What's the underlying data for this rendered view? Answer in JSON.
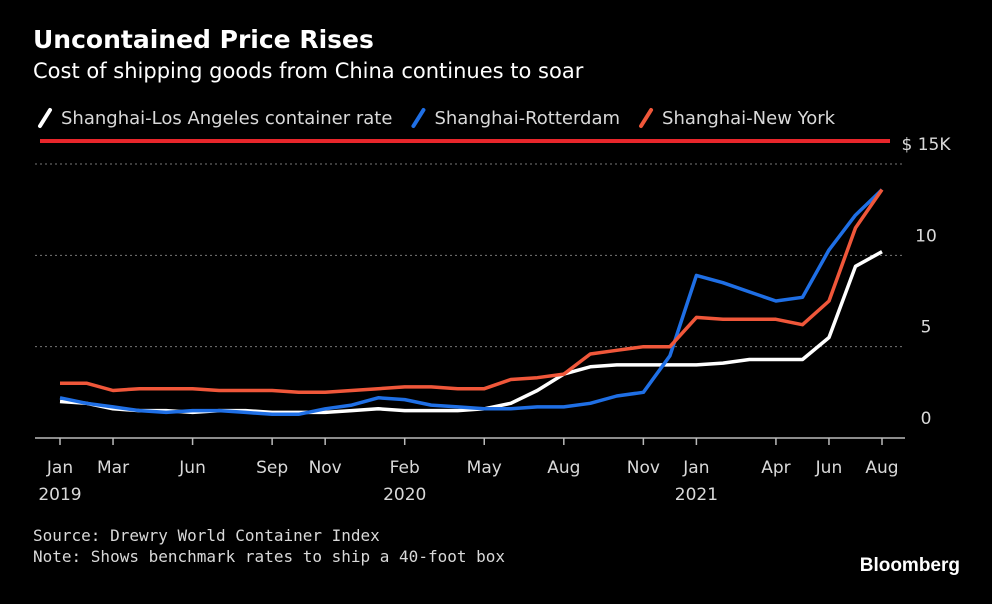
{
  "chart_data": {
    "type": "line",
    "title": "Uncontained Price Rises",
    "subtitle": "Cost of shipping goods from China continues to soar",
    "source": "Source: Drewry World Container Index",
    "note": "Note: Shows benchmark rates to ship a 40-foot box",
    "brand": "Bloomberg",
    "x": [
      "2019-01",
      "2019-02",
      "2019-03",
      "2019-04",
      "2019-05",
      "2019-06",
      "2019-07",
      "2019-08",
      "2019-09",
      "2019-10",
      "2019-11",
      "2019-12",
      "2020-01",
      "2020-02",
      "2020-03",
      "2020-04",
      "2020-05",
      "2020-06",
      "2020-07",
      "2020-08",
      "2020-09",
      "2020-10",
      "2020-11",
      "2020-12",
      "2021-01",
      "2021-02",
      "2021-03",
      "2021-04",
      "2021-05",
      "2021-06",
      "2021-07",
      "2021-08"
    ],
    "xticks": [
      {
        "value": "2019-01",
        "label": "Jan"
      },
      {
        "value": "2019-03",
        "label": "Mar"
      },
      {
        "value": "2019-06",
        "label": "Jun"
      },
      {
        "value": "2019-09",
        "label": "Sep"
      },
      {
        "value": "2019-11",
        "label": "Nov"
      },
      {
        "value": "2020-02",
        "label": "Feb"
      },
      {
        "value": "2020-05",
        "label": "May"
      },
      {
        "value": "2020-08",
        "label": "Aug"
      },
      {
        "value": "2020-11",
        "label": "Nov"
      },
      {
        "value": "2021-01",
        "label": "Jan"
      },
      {
        "value": "2021-04",
        "label": "Apr"
      },
      {
        "value": "2021-06",
        "label": "Jun"
      },
      {
        "value": "2021-08",
        "label": "Aug"
      }
    ],
    "xtick_years": [
      {
        "value": "2019-01",
        "label": "2019"
      },
      {
        "value": "2020-02",
        "label": "2020"
      },
      {
        "value": "2021-01",
        "label": "2021"
      }
    ],
    "ylim": [
      0,
      15
    ],
    "yticks": [
      0,
      5,
      10,
      {
        "value": 15,
        "label": "$ 15K"
      }
    ],
    "grid": true,
    "series": [
      {
        "name": "Shanghai-Los Angeles container rate",
        "color": "#ffffff",
        "values": [
          2.0,
          1.9,
          1.6,
          1.5,
          1.5,
          1.4,
          1.5,
          1.5,
          1.4,
          1.4,
          1.4,
          1.5,
          1.6,
          1.5,
          1.5,
          1.5,
          1.6,
          1.9,
          2.6,
          3.5,
          3.9,
          4.0,
          4.0,
          4.0,
          4.0,
          4.1,
          4.3,
          4.3,
          4.3,
          5.5,
          9.4,
          10.2
        ]
      },
      {
        "name": "Shanghai-Rotterdam",
        "color": "#1f6fe5",
        "values": [
          2.2,
          1.9,
          1.7,
          1.5,
          1.4,
          1.5,
          1.5,
          1.4,
          1.3,
          1.3,
          1.6,
          1.8,
          2.2,
          2.1,
          1.8,
          1.7,
          1.6,
          1.6,
          1.7,
          1.7,
          1.9,
          2.3,
          2.5,
          4.5,
          8.9,
          8.5,
          8.0,
          7.5,
          7.7,
          10.3,
          12.2,
          13.6
        ]
      },
      {
        "name": "Shanghai-New York",
        "color": "#f0573a",
        "values": [
          3.0,
          3.0,
          2.6,
          2.7,
          2.7,
          2.7,
          2.6,
          2.6,
          2.6,
          2.5,
          2.5,
          2.6,
          2.7,
          2.8,
          2.8,
          2.7,
          2.7,
          3.2,
          3.3,
          3.5,
          4.6,
          4.8,
          5.0,
          5.0,
          6.6,
          6.5,
          6.5,
          6.5,
          6.2,
          7.5,
          11.5,
          13.6
        ]
      }
    ]
  }
}
